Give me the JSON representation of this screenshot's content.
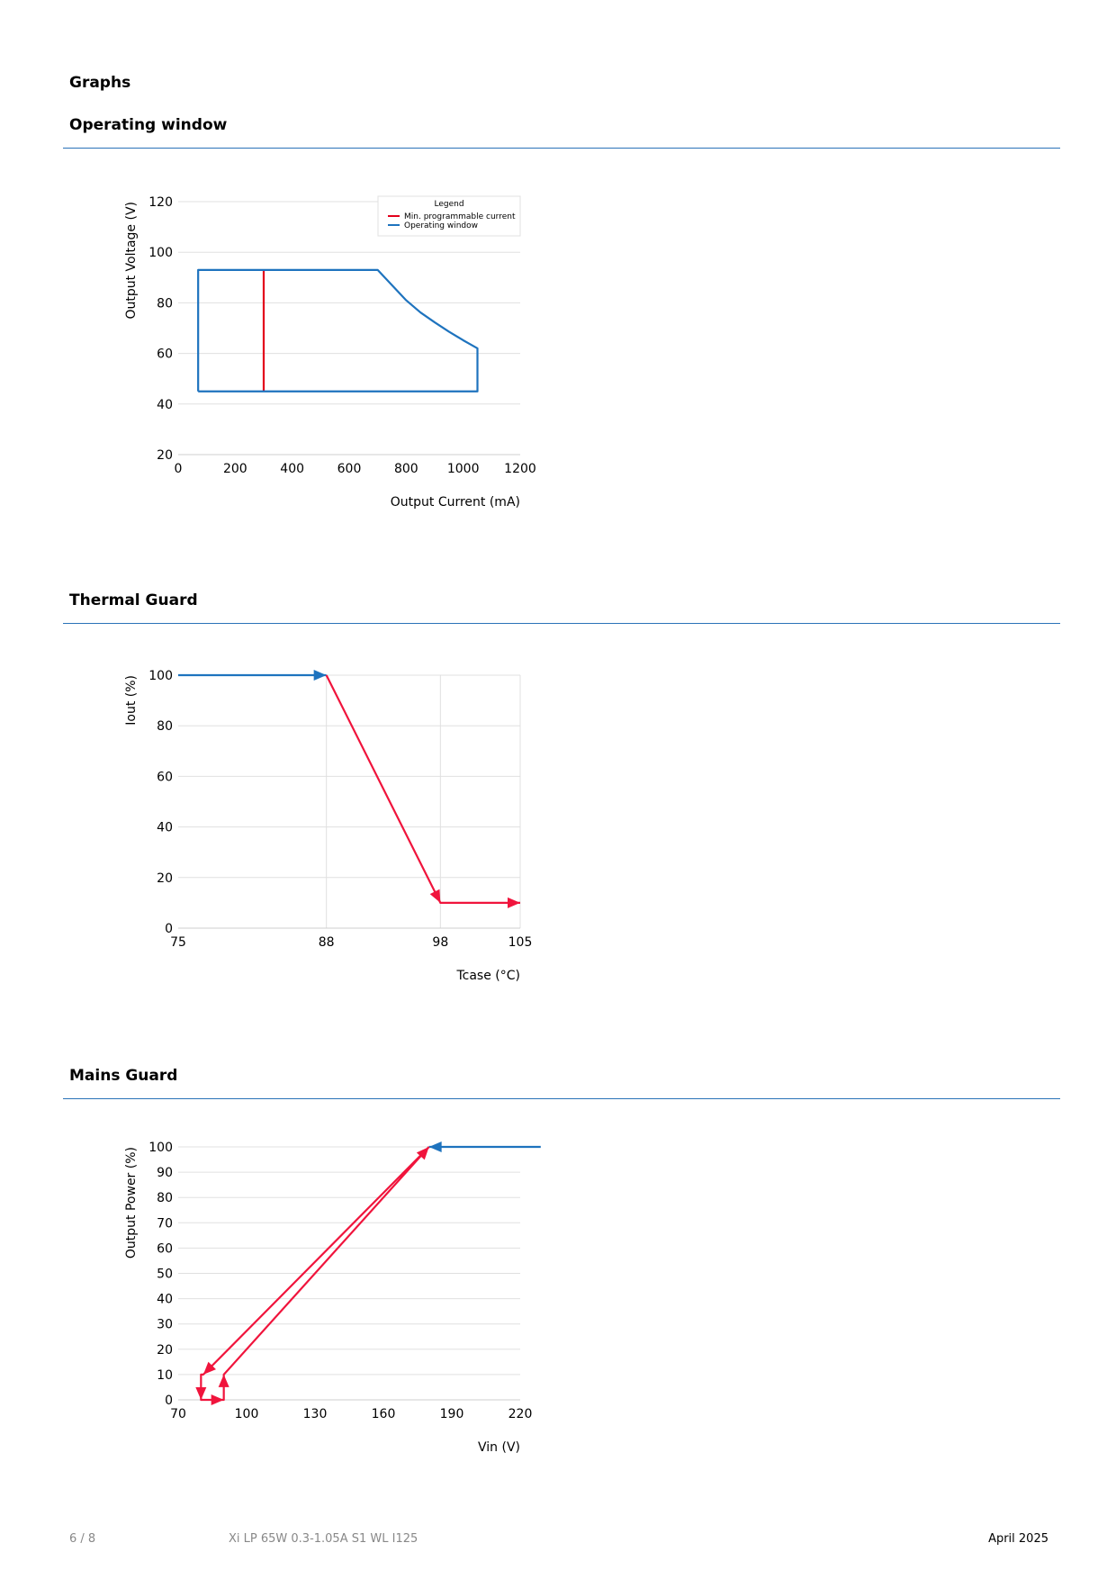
{
  "page": {
    "heading": "Graphs",
    "sections": [
      {
        "title": "Operating window"
      },
      {
        "title": "Thermal Guard"
      },
      {
        "title": "Mains Guard"
      }
    ],
    "footer": {
      "page_number": "6 / 8",
      "product": "Xi LP 65W 0.3-1.05A S1 WL I125",
      "date": "April 2025"
    }
  },
  "chart_data": [
    {
      "type": "line",
      "xlabel": "Output Current (mA)",
      "ylabel": "Output Voltage (V)",
      "xlim": [
        0,
        1200
      ],
      "ylim": [
        20,
        120
      ],
      "xticks": [
        0,
        200,
        400,
        600,
        800,
        1000,
        1200
      ],
      "yticks": [
        20,
        40,
        60,
        80,
        100,
        120
      ],
      "legend": {
        "title": "Legend",
        "placement": "top-right"
      },
      "series": [
        {
          "name": "Min. programmable current",
          "color": "#e3001b",
          "x": [
            300,
            300
          ],
          "y": [
            45,
            93
          ]
        },
        {
          "name": "Operating window",
          "color": "#1e73be",
          "x": [
            70,
            70,
            700,
            750,
            800,
            850,
            900,
            950,
            1000,
            1050,
            1050,
            70
          ],
          "y": [
            45,
            93,
            93,
            87,
            81,
            76.2,
            72.3,
            68.6,
            65.2,
            62,
            45,
            45
          ]
        }
      ]
    },
    {
      "type": "line",
      "xlabel": "Tcase (°C)",
      "ylabel": "Iout (%)",
      "xlim": [
        75,
        105
      ],
      "ylim": [
        0,
        100
      ],
      "xticks": [
        75,
        88,
        98,
        105
      ],
      "yticks": [
        0,
        20,
        40,
        60,
        80,
        100
      ],
      "series": [
        {
          "color": "#1e73be",
          "x": [
            75,
            88
          ],
          "y": [
            100,
            100
          ]
        },
        {
          "color": "#f0143c",
          "x": [
            88,
            98,
            105
          ],
          "y": [
            100,
            10,
            10
          ]
        }
      ]
    },
    {
      "type": "line",
      "xlabel": "Vin (V)",
      "ylabel": "Output Power (%)",
      "xlim": [
        70,
        220
      ],
      "ylim": [
        0,
        100
      ],
      "xticks": [
        70,
        100,
        130,
        160,
        190,
        220
      ],
      "yticks": [
        0,
        10,
        20,
        30,
        40,
        50,
        60,
        70,
        80,
        90,
        100
      ],
      "series": [
        {
          "color": "#1e73be",
          "x": [
            229,
            180
          ],
          "y": [
            100,
            100
          ]
        },
        {
          "color": "#f0143c",
          "x": [
            180,
            81,
            80,
            80,
            90,
            90,
            180
          ],
          "y": [
            100,
            10,
            10,
            0,
            0,
            10,
            100
          ]
        }
      ]
    }
  ]
}
